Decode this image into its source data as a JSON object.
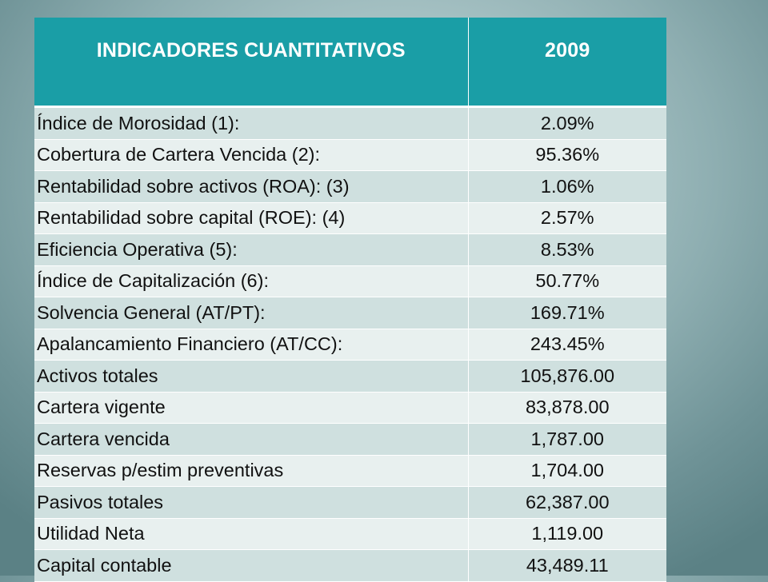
{
  "table": {
    "headers": [
      "INDICADORES CUANTITATIVOS",
      "2009"
    ],
    "rows": [
      {
        "label": "Índice de Morosidad (1):",
        "value": "2.09%"
      },
      {
        "label": "Cobertura de Cartera Vencida (2):",
        "value": "95.36%"
      },
      {
        "label": "Rentabilidad sobre activos (ROA): (3)",
        "value": "1.06%"
      },
      {
        "label": "Rentabilidad sobre capital (ROE): (4)",
        "value": "2.57%"
      },
      {
        "label": "Eficiencia Operativa (5):",
        "value": "8.53%"
      },
      {
        "label": "Índice de Capitalización (6):",
        "value": "50.77%"
      },
      {
        "label": "Solvencia General (AT/PT):",
        "value": "169.71%"
      },
      {
        "label": "Apalancamiento Financiero (AT/CC):",
        "value": "243.45%"
      },
      {
        "label": "Activos totales",
        "value": "105,876.00"
      },
      {
        "label": "Cartera vigente",
        "value": "83,878.00"
      },
      {
        "label": "Cartera vencida",
        "value": "1,787.00"
      },
      {
        "label": "Reservas p/estim preventivas",
        "value": "1,704.00"
      },
      {
        "label": "Pasivos totales",
        "value": "62,387.00"
      },
      {
        "label": "Utilidad Neta",
        "value": "1,119.00"
      },
      {
        "label": "Capital contable",
        "value": "43,489.11"
      }
    ]
  },
  "colors": {
    "header_bg": "#1a9ea6",
    "row_odd": "#cfe0df",
    "row_even": "#e8f0ef"
  }
}
